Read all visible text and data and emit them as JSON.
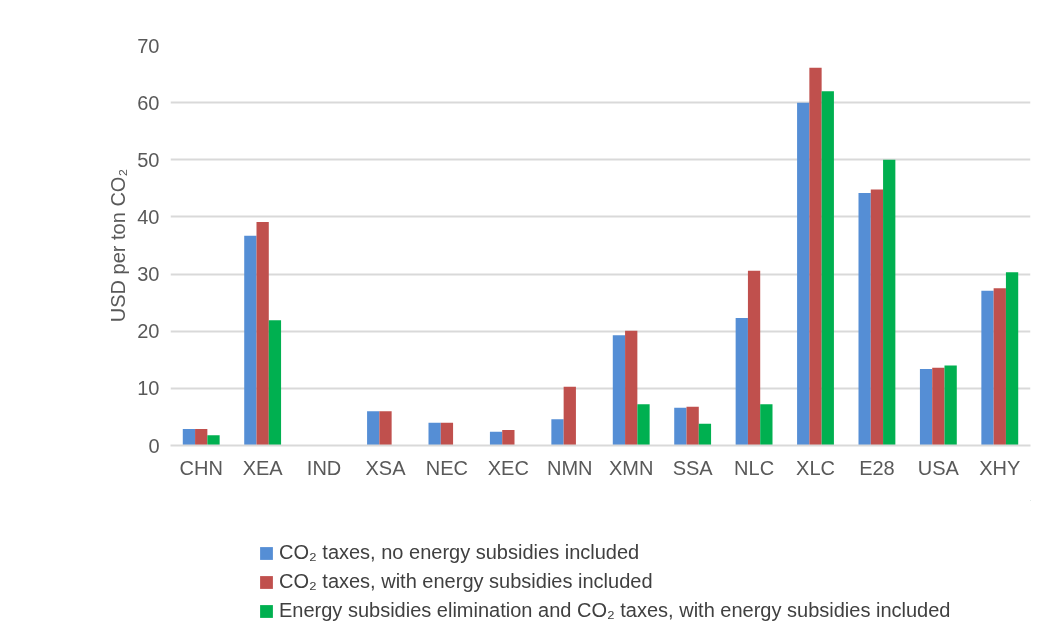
{
  "chart_data": {
    "type": "bar",
    "ylabel": "USD per ton CO₂",
    "categories": [
      "CHN",
      "XEA",
      "IND",
      "XSA",
      "NEC",
      "XEC",
      "NMN",
      "XMN",
      "SSA",
      "NLC",
      "XLC",
      "E28",
      "USA",
      "XHY"
    ],
    "series": [
      {
        "name": "CO₂ taxes, no energy subsidies included",
        "color": "#558ed5",
        "values": [
          2.9,
          36.7,
          0,
          6,
          4,
          2.4,
          4.6,
          19.3,
          6.6,
          22.3,
          60,
          44.2,
          13.4,
          27.1
        ]
      },
      {
        "name": "CO₂ taxes, with energy subsidies included",
        "color": "#c0504d",
        "values": [
          2.9,
          39.1,
          0,
          6,
          4,
          2.7,
          10.3,
          20.1,
          6.8,
          30.6,
          66.1,
          44.8,
          13.6,
          27.5
        ]
      },
      {
        "name": "Energy subsidies elimination and CO₂ taxes, with energy subsidies included",
        "color": "#00b050",
        "values": [
          1.8,
          21.9,
          0,
          0,
          0,
          0,
          0,
          7.2,
          3.8,
          7.2,
          62,
          50,
          14,
          30.3
        ]
      }
    ],
    "ylim": [
      0,
      70
    ],
    "yticks": [
      0,
      10,
      20,
      30,
      40,
      50,
      60,
      70
    ],
    "grid": "y",
    "legend": "bottom"
  }
}
